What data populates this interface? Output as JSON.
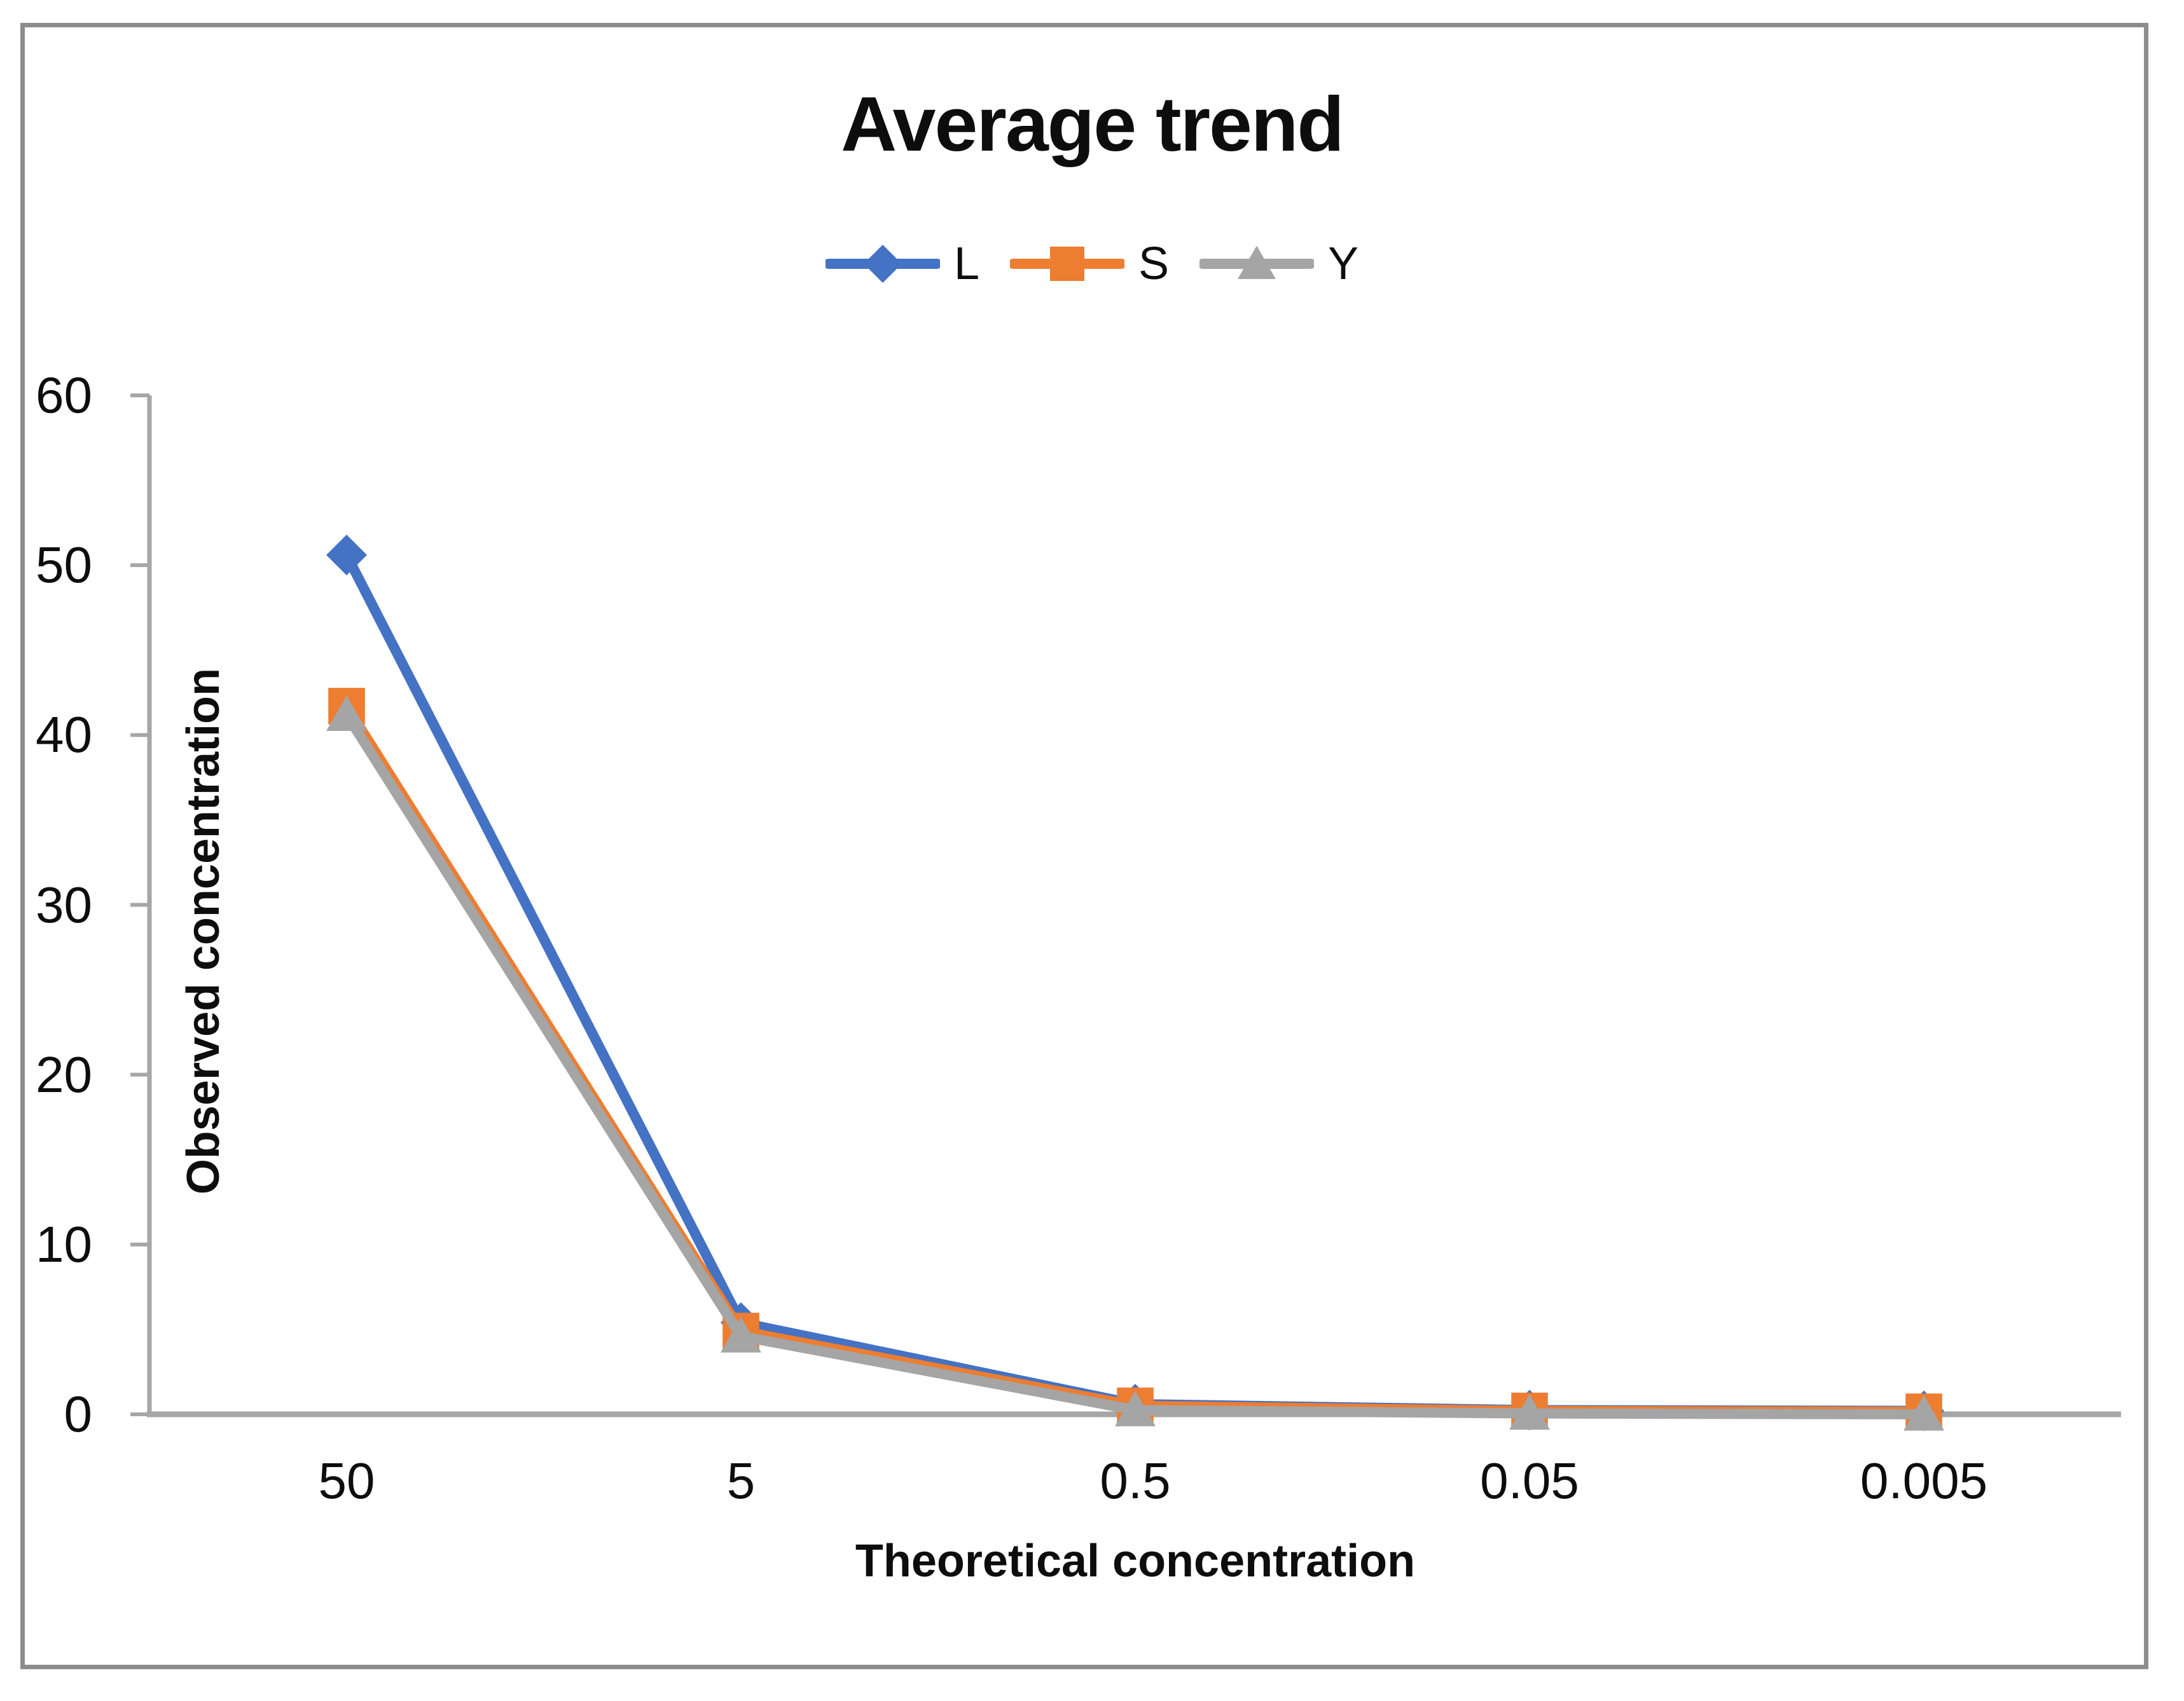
{
  "chart_data": {
    "type": "line",
    "title": "Average trend",
    "xlabel": "Theoretical concentration",
    "ylabel": "Observed concentration",
    "categories": [
      "50",
      "5",
      "0.5",
      "0.05",
      "0.005"
    ],
    "yticks": [
      0,
      10,
      20,
      30,
      40,
      50,
      60
    ],
    "ylim": [
      0,
      60
    ],
    "grid": false,
    "legend_position": "top-center",
    "axis_color": "#a6a6a6",
    "border_color": "#8c8c8c",
    "text_color": "#0d0d0d",
    "series": [
      {
        "name": "L",
        "marker": "diamond",
        "color": "#4472c4",
        "values": [
          50.6,
          5.4,
          0.6,
          0.25,
          0.2
        ]
      },
      {
        "name": "S",
        "marker": "square",
        "color": "#ed7d31",
        "values": [
          41.7,
          4.9,
          0.5,
          0.2,
          0.15
        ]
      },
      {
        "name": "Y",
        "marker": "triangle",
        "color": "#a5a5a5",
        "values": [
          41.2,
          4.6,
          0.25,
          0.05,
          0.0
        ]
      }
    ]
  }
}
